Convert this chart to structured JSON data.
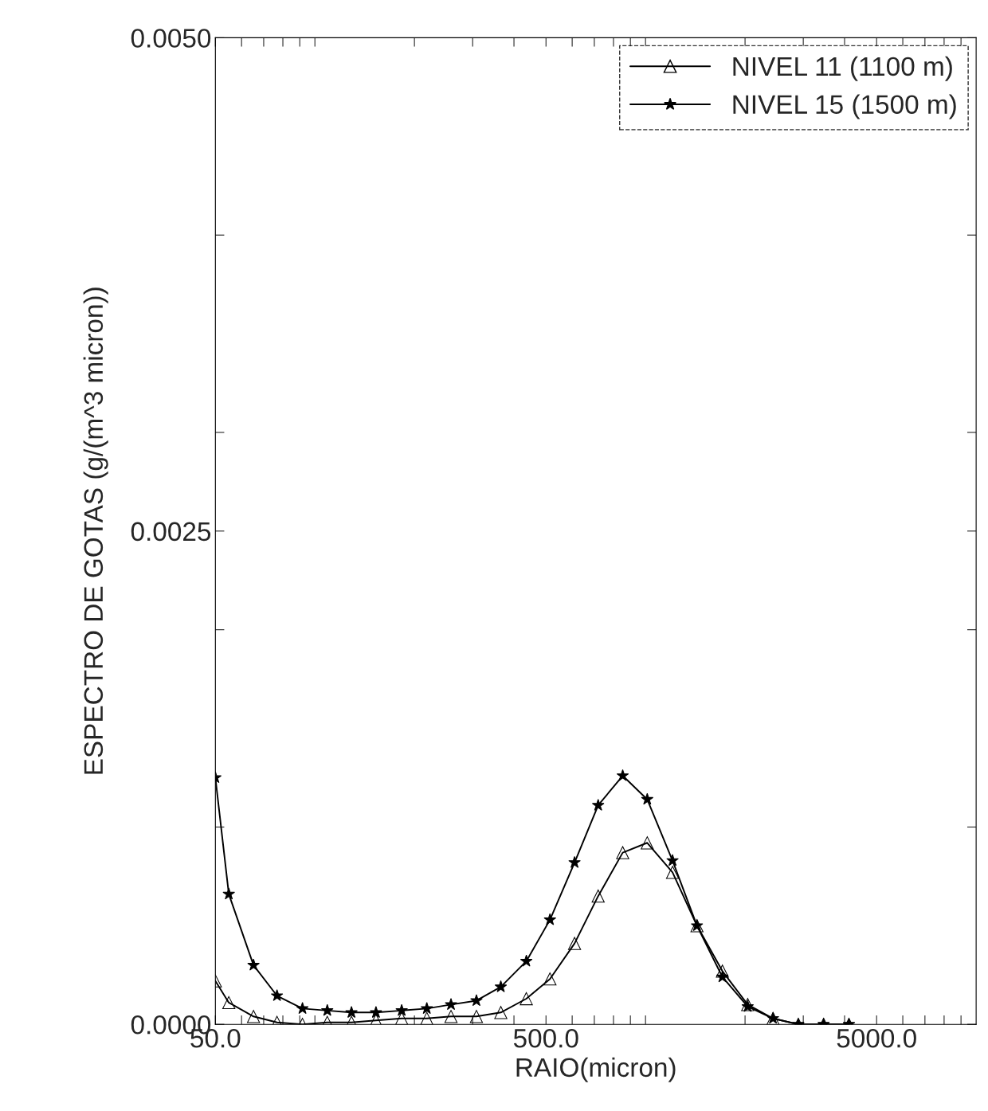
{
  "chart_data": {
    "type": "line",
    "xlabel": "RAIO(micron)",
    "ylabel": "ESPECTRO DE GOTAS (g/(m^3 micron))",
    "x": [
      50,
      54.9,
      65.2,
      76.8,
      91.7,
      109,
      129,
      153,
      183,
      218,
      258,
      308,
      365,
      436,
      514,
      610,
      719,
      853,
      1012,
      1207,
      1431,
      1708,
      2037,
      2430,
      2899,
      3457,
      4124
    ],
    "series": [
      {
        "name": "NIVEL 11 (1100 m)",
        "color": "#000000",
        "marker": "triangle",
        "values": [
          0.00022,
          0.00011,
          4e-05,
          1e-05,
          0,
          1e-05,
          1e-05,
          2e-05,
          3e-05,
          3e-05,
          4e-05,
          4e-05,
          6e-05,
          0.00013,
          0.00023,
          0.00041,
          0.00065,
          0.00087,
          0.00092,
          0.00077,
          0.0005,
          0.00027,
          0.0001,
          3e-05,
          0,
          0,
          0
        ]
      },
      {
        "name": "NIVEL 15 (1500 m)",
        "color": "#000000",
        "marker": "star",
        "values": [
          0.00125,
          0.00066,
          0.0003,
          0.000145,
          8e-05,
          7e-05,
          6e-05,
          6e-05,
          7e-05,
          8e-05,
          0.0001,
          0.00012,
          0.00019,
          0.00032,
          0.00053,
          0.00082,
          0.00111,
          0.00126,
          0.00114,
          0.00083,
          0.0005,
          0.00024,
          9e-05,
          3e-05,
          0,
          0,
          0
        ]
      }
    ],
    "log": "x",
    "xlim": [
      50,
      10000
    ],
    "xticks": [
      {
        "value": 50,
        "label": "50.0"
      },
      {
        "value": 60,
        "label": null
      },
      {
        "value": 70,
        "label": null
      },
      {
        "value": 80,
        "label": null
      },
      {
        "value": 90,
        "label": null
      },
      {
        "value": 100,
        "label": null
      },
      {
        "value": 200,
        "label": null
      },
      {
        "value": 300,
        "label": null
      },
      {
        "value": 400,
        "label": null
      },
      {
        "value": 500,
        "label": "500.0"
      },
      {
        "value": 600,
        "label": null
      },
      {
        "value": 700,
        "label": null
      },
      {
        "value": 800,
        "label": null
      },
      {
        "value": 900,
        "label": null
      },
      {
        "value": 1000,
        "label": null
      },
      {
        "value": 2000,
        "label": null
      },
      {
        "value": 3000,
        "label": null
      },
      {
        "value": 4000,
        "label": null
      },
      {
        "value": 5000,
        "label": "5000.0"
      },
      {
        "value": 6000,
        "label": null
      },
      {
        "value": 7000,
        "label": null
      },
      {
        "value": 8000,
        "label": null
      },
      {
        "value": 9000,
        "label": null
      }
    ],
    "ylim": [
      0,
      0.005
    ],
    "yticks": [
      {
        "value": 0,
        "label": "0.0000"
      },
      {
        "value": 0.001,
        "label": null
      },
      {
        "value": 0.002,
        "label": null
      },
      {
        "value": 0.0025,
        "label": "0.0025"
      },
      {
        "value": 0.003,
        "label": null
      },
      {
        "value": 0.004,
        "label": null
      },
      {
        "value": 0.005,
        "label": "0.0050"
      }
    ],
    "grid": false,
    "legend": "top right"
  }
}
